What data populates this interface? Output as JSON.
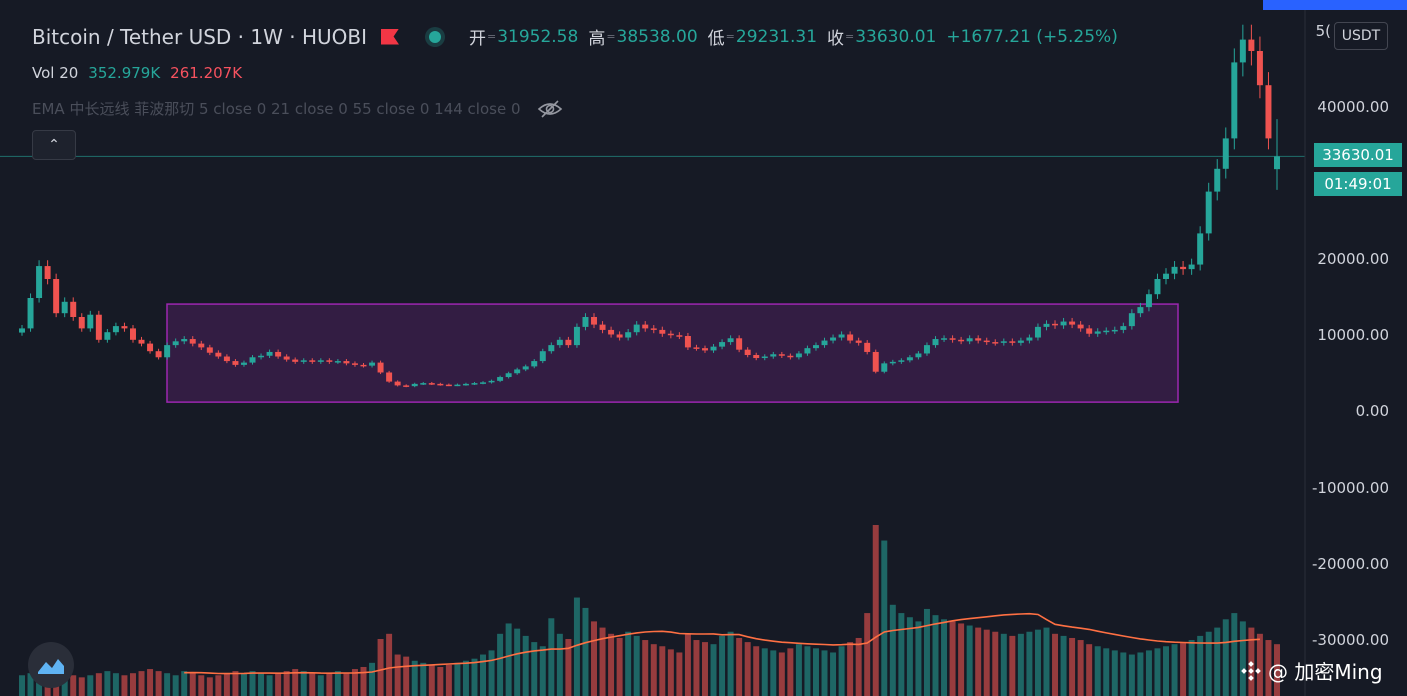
{
  "header": {
    "symbol_title": "Bitcoin / Tether USD · 1W · HUOBI",
    "open_label": "开",
    "open_value": "31952.58",
    "high_label": "高",
    "high_value": "38538.00",
    "low_label": "低",
    "low_value": "29231.31",
    "close_label": "收",
    "close_value": "33630.01",
    "change": "+1677.21 (+5.25%)",
    "eq_glyph": "="
  },
  "volume_legend": {
    "label": "Vol 20",
    "value_up": "352.979K",
    "value_down": "261.207K"
  },
  "ema_legend": {
    "text": "EMA 中长远线 菲波那切 5 close 0 21 close 0 55 close 0 144 close 0",
    "icon": "eye-off-icon"
  },
  "collapse_button": {
    "icon": "chevron-up-icon",
    "glyph": "⌃"
  },
  "price_axis": {
    "currency": "USDT",
    "top_partial": "5(",
    "labels": [
      "40000.00",
      "20000.00",
      "10000.00",
      "0.00",
      "-10000.00",
      "-20000.00",
      "-30000.00"
    ],
    "last_price": "33630.01",
    "countdown": "01:49:01"
  },
  "watermark": {
    "text": "@ 加密Ming",
    "icon": "binance-diamond-icon"
  },
  "colors": {
    "up": "#26a69a",
    "down": "#ef5350",
    "box": "#9c27b0",
    "ma": "#ff7043",
    "background": "#161a25"
  },
  "chart_data": {
    "type": "candlestick",
    "title": "Bitcoin / Tether USD · 1W · HUOBI",
    "interval": "1W",
    "exchange": "HUOBI",
    "price_scale": {
      "ticks": [
        40000,
        20000,
        10000,
        0,
        -10000,
        -20000,
        -30000
      ],
      "nonlinear_segment": "40000 to 20000 spans same height as 20000 to 10000"
    },
    "last_bar": {
      "open": 31952.58,
      "high": 38538.0,
      "low": 29231.31,
      "close": 33630.01,
      "change": 1677.21,
      "change_pct": 5.25
    },
    "volume": {
      "ma_length": 20,
      "value_up": "352.979K",
      "value_down": "261.207K"
    },
    "consolidation_box": {
      "price_low": 1300,
      "price_high": 14200,
      "color": "#9c27b0"
    },
    "closes": [
      11000,
      15000,
      19200,
      17500,
      13000,
      14500,
      12500,
      11000,
      12800,
      9500,
      10500,
      11300,
      11000,
      9500,
      9000,
      8000,
      7200,
      8800,
      9300,
      9600,
      9000,
      8500,
      7800,
      7300,
      6700,
      6200,
      6500,
      7200,
      7400,
      7900,
      7300,
      6900,
      6600,
      6800,
      6600,
      6800,
      6600,
      6700,
      6400,
      6200,
      6100,
      6500,
      5200,
      4000,
      3500,
      3400,
      3700,
      3800,
      3700,
      3600,
      3550,
      3600,
      3700,
      3800,
      3900,
      4100,
      4600,
      5100,
      5600,
      6000,
      6700,
      8000,
      8800,
      9500,
      8800,
      11200,
      12500,
      11500,
      10800,
      10200,
      9800,
      10500,
      11500,
      11000,
      10800,
      10300,
      10100,
      10000,
      8500,
      8400,
      8100,
      8600,
      9200,
      9700,
      8200,
      7500,
      7100,
      7300,
      7600,
      7400,
      7200,
      7700,
      8400,
      8800,
      9400,
      9800,
      10200,
      9400,
      9100,
      7900,
      5300,
      6400,
      6600,
      6800,
      7200,
      7700,
      8800,
      9600,
      9700,
      9500,
      9300,
      9700,
      9400,
      9200,
      9100,
      9300,
      9100,
      9400,
      9800,
      11200,
      11600,
      11400,
      11900,
      11500,
      11000,
      10300,
      10600,
      10700,
      10800,
      11300,
      13000,
      13800,
      15500,
      17500,
      18200,
      19100,
      18800,
      19400,
      23500,
      29000,
      32000,
      36000,
      46000,
      49000,
      47500,
      43000,
      36000,
      33630
    ],
    "volume_values": [
      20,
      22,
      25,
      28,
      24,
      22,
      20,
      18,
      20,
      22,
      24,
      22,
      20,
      22,
      24,
      26,
      24,
      22,
      20,
      24,
      22,
      20,
      18,
      20,
      22,
      24,
      22,
      24,
      22,
      20,
      22,
      24,
      26,
      24,
      22,
      20,
      22,
      24,
      22,
      26,
      28,
      32,
      55,
      60,
      40,
      38,
      34,
      32,
      30,
      28,
      30,
      32,
      34,
      36,
      40,
      44,
      60,
      70,
      65,
      58,
      52,
      48,
      75,
      60,
      55,
      95,
      85,
      72,
      66,
      60,
      56,
      62,
      58,
      54,
      50,
      48,
      45,
      42,
      60,
      54,
      52,
      50,
      58,
      62,
      56,
      52,
      48,
      46,
      44,
      42,
      46,
      50,
      48,
      46,
      44,
      42,
      48,
      52,
      56,
      80,
      165,
      150,
      88,
      80,
      76,
      72,
      84,
      78,
      74,
      72,
      70,
      68,
      66,
      64,
      62,
      60,
      58,
      60,
      62,
      64,
      66,
      60,
      58,
      56,
      54,
      50,
      48,
      46,
      44,
      42,
      40,
      42,
      44,
      46,
      48,
      50,
      52,
      54,
      58,
      62,
      66,
      74,
      80,
      72,
      66,
      60,
      54,
      50
    ]
  }
}
